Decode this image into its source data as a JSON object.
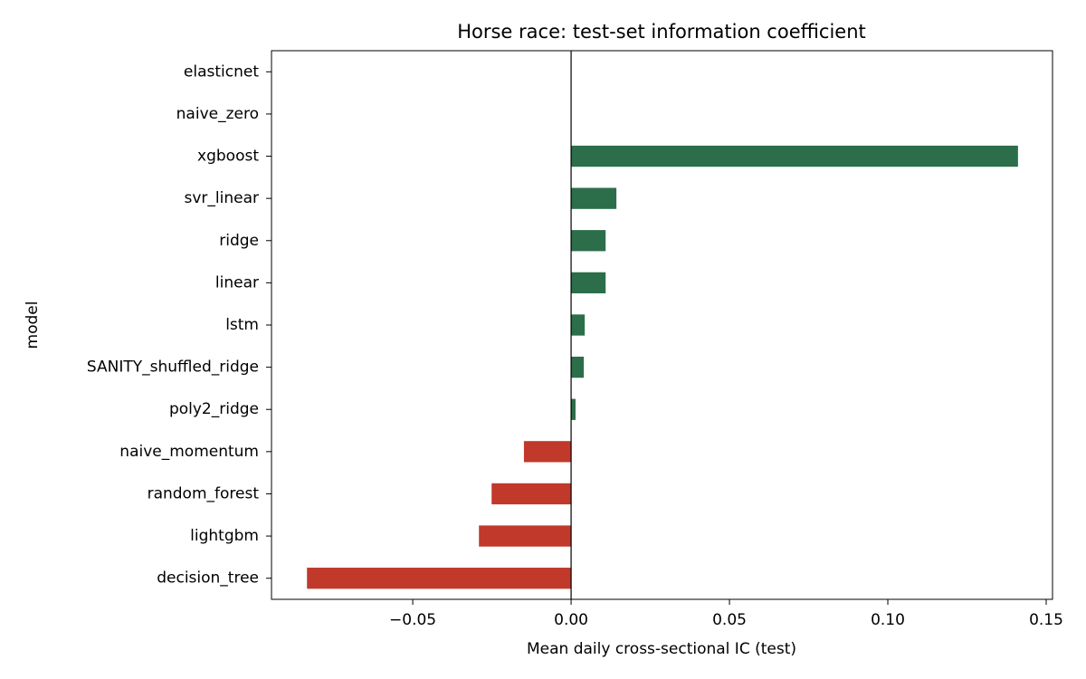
{
  "chart_data": {
    "type": "barh",
    "title": "Horse race: test-set information coefficient",
    "xlabel": "Mean daily cross-sectional IC (test)",
    "ylabel": "model",
    "categories": [
      "elasticnet",
      "naive_zero",
      "xgboost",
      "svr_linear",
      "ridge",
      "linear",
      "lstm",
      "SANITY_shuffled_ridge",
      "poly2_ridge",
      "naive_momentum",
      "random_forest",
      "lightgbm",
      "decision_tree"
    ],
    "values": [
      0,
      0,
      0.1411,
      0.0143,
      0.0109,
      0.0109,
      0.0043,
      0.004,
      0.0014,
      -0.0149,
      -0.0251,
      -0.0291,
      -0.0834
    ],
    "colors": [
      "#2c6e49",
      "#2c6e49",
      "#2c6e49",
      "#2c6e49",
      "#2c6e49",
      "#2c6e49",
      "#2c6e49",
      "#2c6e49",
      "#2c6e49",
      "#c0392b",
      "#c0392b",
      "#c0392b",
      "#c0392b"
    ],
    "xlim": [
      -0.0946,
      0.152
    ],
    "xticks": [
      {
        "value": -0.05,
        "label": "−0.05"
      },
      {
        "value": 0,
        "label": "0.00"
      },
      0.05,
      {
        "value": 0.1,
        "label": "0.10"
      },
      0.15
    ],
    "reference_line": 0,
    "grid": false
  }
}
